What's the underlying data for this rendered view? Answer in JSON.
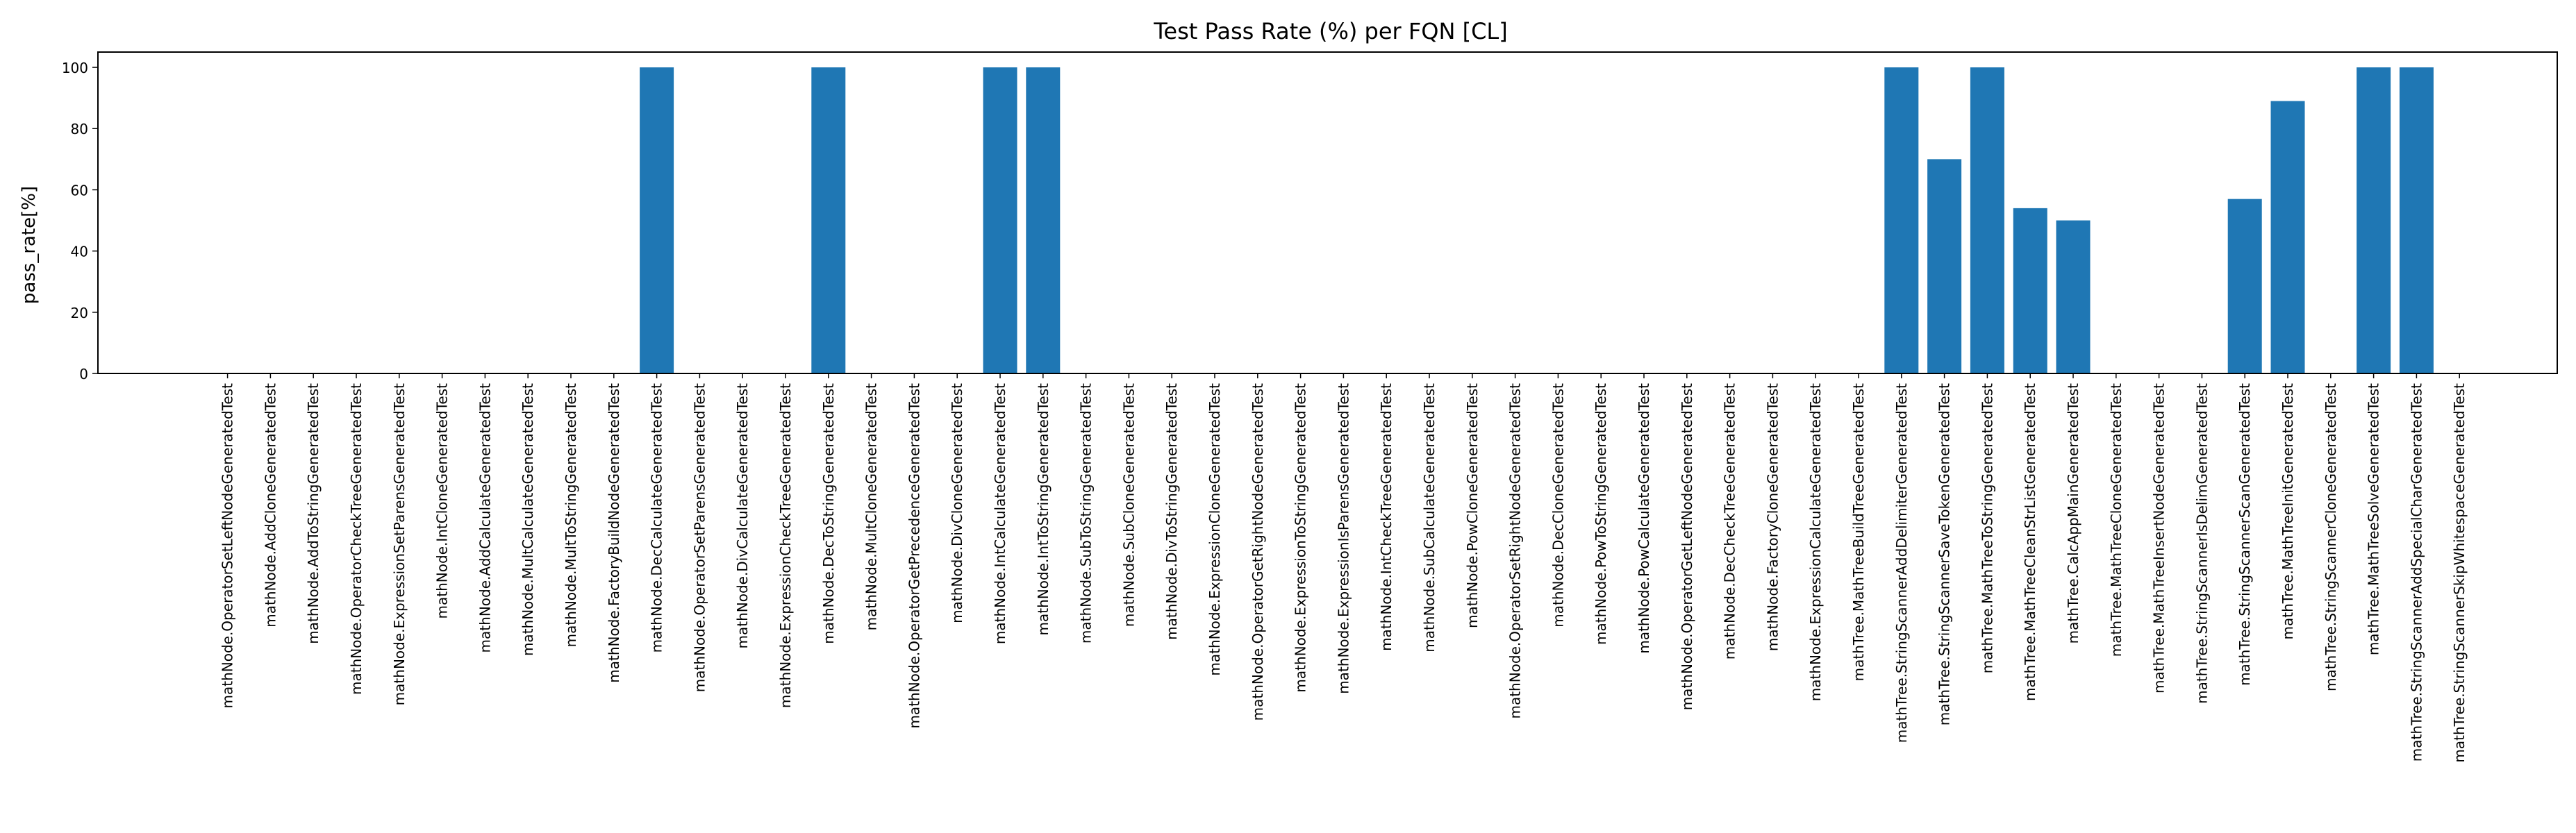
{
  "chart_data": {
    "type": "bar",
    "title": "Test Pass Rate (%) per FQN [CL]",
    "xlabel": "",
    "ylabel": "pass_rate[%]",
    "ylim": [
      0,
      105
    ],
    "yticks": [
      0,
      20,
      40,
      60,
      80,
      100
    ],
    "grid": false,
    "legend": "none",
    "bar_color": "#1f77b4",
    "categories": [
      "mathNode.OperatorSetLeftNodeGeneratedTest",
      "mathNode.AddCloneGeneratedTest",
      "mathNode.AddToStringGeneratedTest",
      "mathNode.OperatorCheckTreeGeneratedTest",
      "mathNode.ExpressionSetParensGeneratedTest",
      "mathNode.IntCloneGeneratedTest",
      "mathNode.AddCalculateGeneratedTest",
      "mathNode.MultCalculateGeneratedTest",
      "mathNode.MultToStringGeneratedTest",
      "mathNode.FactoryBuildNodeGeneratedTest",
      "mathNode.DecCalculateGeneratedTest",
      "mathNode.OperatorSetParensGeneratedTest",
      "mathNode.DivCalculateGeneratedTest",
      "mathNode.ExpressionCheckTreeGeneratedTest",
      "mathNode.DecToStringGeneratedTest",
      "mathNode.MultCloneGeneratedTest",
      "mathNode.OperatorGetPrecedenceGeneratedTest",
      "mathNode.DivCloneGeneratedTest",
      "mathNode.IntCalculateGeneratedTest",
      "mathNode.IntToStringGeneratedTest",
      "mathNode.SubToStringGeneratedTest",
      "mathNode.SubCloneGeneratedTest",
      "mathNode.DivToStringGeneratedTest",
      "mathNode.ExpressionCloneGeneratedTest",
      "mathNode.OperatorGetRightNodeGeneratedTest",
      "mathNode.ExpressionToStringGeneratedTest",
      "mathNode.ExpressionIsParensGeneratedTest",
      "mathNode.IntCheckTreeGeneratedTest",
      "mathNode.SubCalculateGeneratedTest",
      "mathNode.PowCloneGeneratedTest",
      "mathNode.OperatorSetRightNodeGeneratedTest",
      "mathNode.DecCloneGeneratedTest",
      "mathNode.PowToStringGeneratedTest",
      "mathNode.PowCalculateGeneratedTest",
      "mathNode.OperatorGetLeftNodeGeneratedTest",
      "mathNode.DecCheckTreeGeneratedTest",
      "mathNode.FactoryCloneGeneratedTest",
      "mathNode.ExpressionCalculateGeneratedTest",
      "mathTree.MathTreeBuildTreeGeneratedTest",
      "mathTree.StringScannerAddDelimiterGeneratedTest",
      "mathTree.StringScannerSaveTokenGeneratedTest",
      "mathTree.MathTreeToStringGeneratedTest",
      "mathTree.MathTreeCleanStrListGeneratedTest",
      "mathTree.CalcAppMainGeneratedTest",
      "mathTree.MathTreeCloneGeneratedTest",
      "mathTree.MathTreeInsertNodeGeneratedTest",
      "mathTree.StringScannerIsDelimGeneratedTest",
      "mathTree.StringScannerScanGeneratedTest",
      "mathTree.MathTreeInitGeneratedTest",
      "mathTree.StringScannerCloneGeneratedTest",
      "mathTree.MathTreeSolveGeneratedTest",
      "mathTree.StringScannerAddSpecialCharGeneratedTest",
      "mathTree.StringScannerSkipWhitespaceGeneratedTest"
    ],
    "values": [
      0,
      0,
      0,
      0,
      0,
      0,
      0,
      0,
      0,
      0,
      100,
      0,
      0,
      0,
      100,
      0,
      0,
      0,
      100,
      100,
      0,
      0,
      0,
      0,
      0,
      0,
      0,
      0,
      0,
      0,
      0,
      0,
      0,
      0,
      0,
      0,
      0,
      0,
      0,
      100,
      70,
      100,
      54,
      50,
      0,
      0,
      0,
      57,
      89,
      0,
      100,
      100,
      0
    ]
  }
}
